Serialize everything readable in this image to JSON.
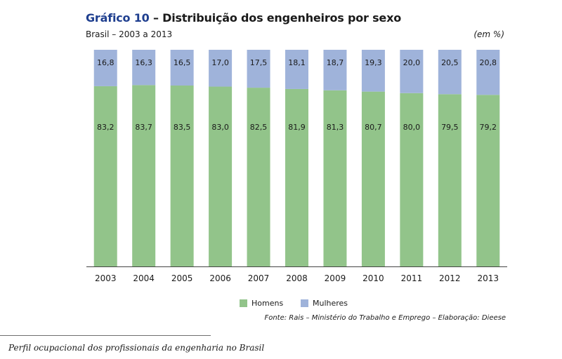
{
  "header": {
    "fig_label": "Gráfico 10",
    "title_rest": " – Distribuição dos engenheiros por sexo",
    "subtitle": "Brasil – 2003 a 2013",
    "unit": "(em %)"
  },
  "colors": {
    "homens": "#92c48a",
    "mulheres": "#9fb3da"
  },
  "chart_data": {
    "type": "bar",
    "stacked": true,
    "title": "Gráfico 10 – Distribuição dos engenheiros por sexo",
    "subtitle": "Brasil – 2003 a 2013",
    "unit": "(em %)",
    "categories": [
      "2003",
      "2004",
      "2005",
      "2006",
      "2007",
      "2008",
      "2009",
      "2010",
      "2011",
      "2012",
      "2013"
    ],
    "series": [
      {
        "name": "Homens",
        "values": [
          83.2,
          83.7,
          83.5,
          83.0,
          82.5,
          81.9,
          81.3,
          80.7,
          80.0,
          79.5,
          79.2
        ],
        "labels": [
          "83,2",
          "83,7",
          "83,5",
          "83,0",
          "82,5",
          "81,9",
          "81,3",
          "80,7",
          "80,0",
          "79,5",
          "79,2"
        ]
      },
      {
        "name": "Mulheres",
        "values": [
          16.8,
          16.3,
          16.5,
          17.0,
          17.5,
          18.1,
          18.7,
          19.3,
          20.0,
          20.5,
          20.8
        ],
        "labels": [
          "16,8",
          "16,3",
          "16,5",
          "17,0",
          "17,5",
          "18,1",
          "18,7",
          "19,3",
          "20,0",
          "20,5",
          "20,8"
        ]
      }
    ],
    "ylim": [
      0,
      100
    ],
    "grid": false,
    "legend": "bottom"
  },
  "source": "Fonte: Rais – Ministério do Trabalho e Emprego – Elaboração: Dieese",
  "footer": "Perfil ocupacional dos profissionais da engenharia no Brasil"
}
